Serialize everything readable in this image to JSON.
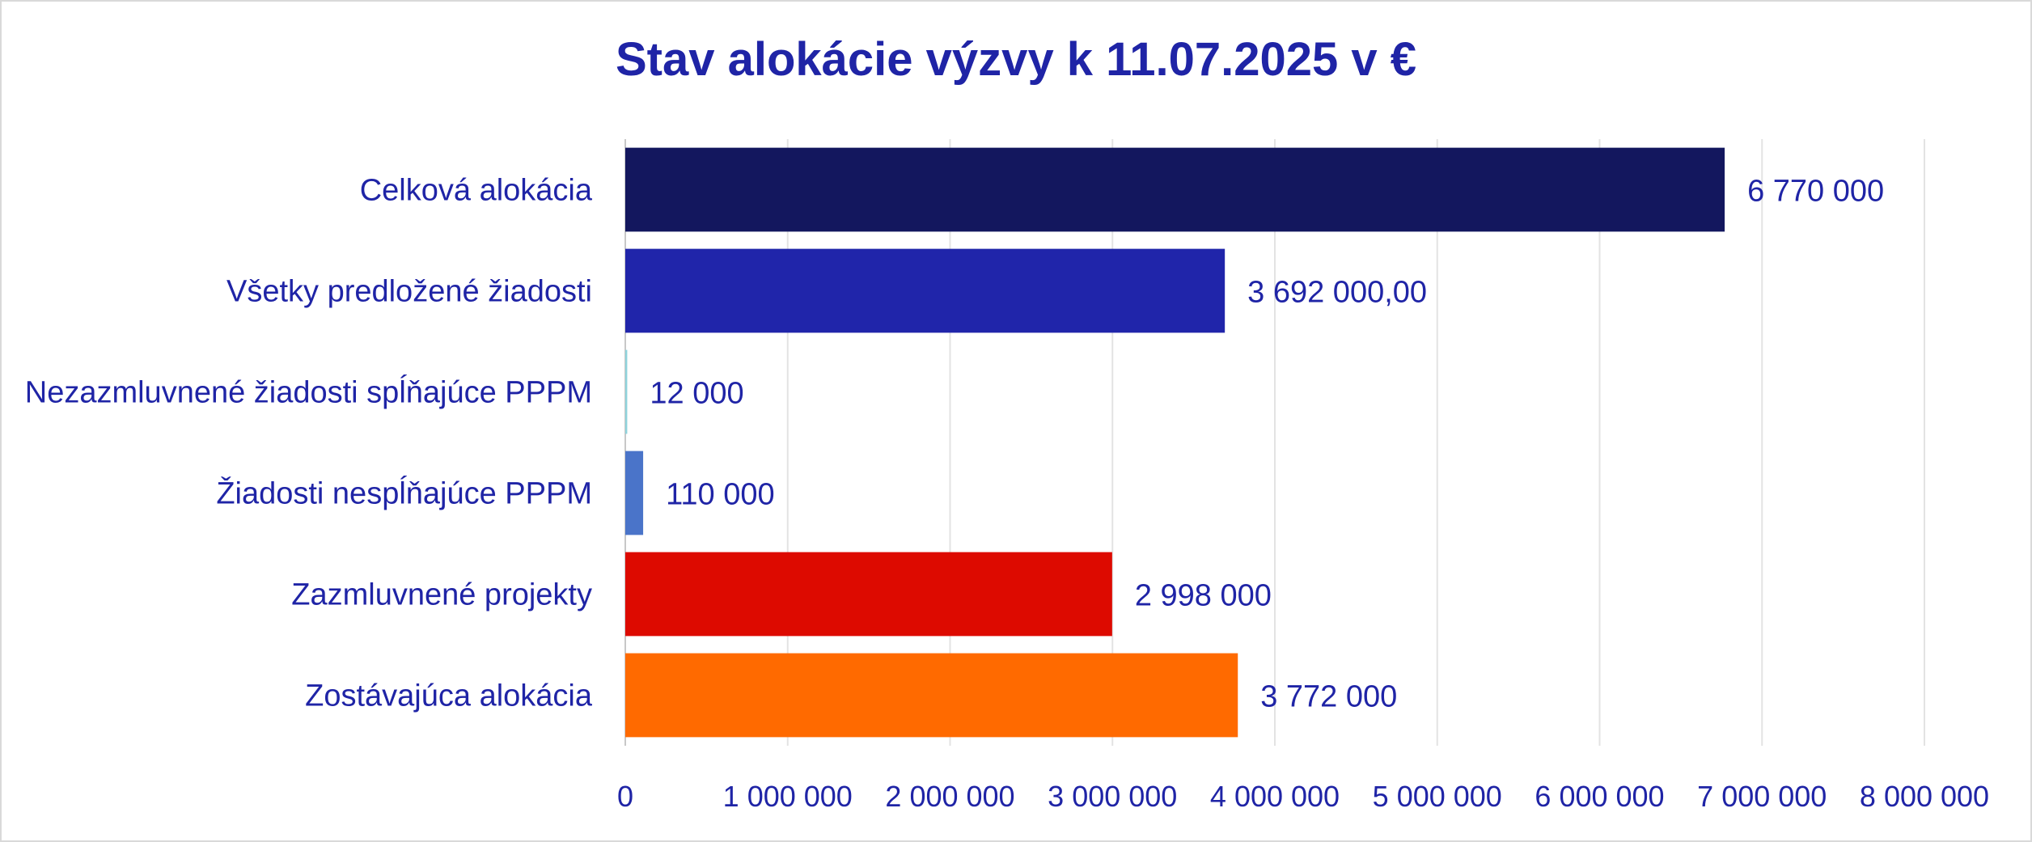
{
  "chart_data": {
    "type": "bar",
    "orientation": "horizontal",
    "title": "Stav alokácie výzvy k 11.07.2025 v €",
    "categories": [
      "Celková alokácia",
      "Všetky predložené žiadosti",
      "Nezazmluvnené žiadosti spĺňajúce PPPM",
      "Žiadosti nespĺňajúce PPPM",
      "Zazmluvnené projekty",
      "Zostávajúca alokácia"
    ],
    "values": [
      6770000,
      3692000,
      12000,
      110000,
      2998000,
      3772000
    ],
    "data_labels": [
      "6 770 000",
      "3 692 000,00",
      "12 000",
      "110 000",
      "2 998 000",
      "3 772 000"
    ],
    "colors": [
      "#13175e",
      "#2025aa",
      "#8fd3dc",
      "#4a74c9",
      "#dd0a00",
      "#ff6a00"
    ],
    "xlim": [
      0,
      8000000
    ],
    "x_ticks": [
      0,
      1000000,
      2000000,
      3000000,
      4000000,
      5000000,
      6000000,
      7000000,
      8000000
    ],
    "x_tick_labels": [
      "0",
      "1 000 000",
      "2 000 000",
      "3 000 000",
      "4 000 000",
      "5 000 000",
      "6 000 000",
      "7 000 000",
      "8 000 000"
    ],
    "grid": true,
    "legend": "none",
    "xlabel": "",
    "ylabel": ""
  }
}
